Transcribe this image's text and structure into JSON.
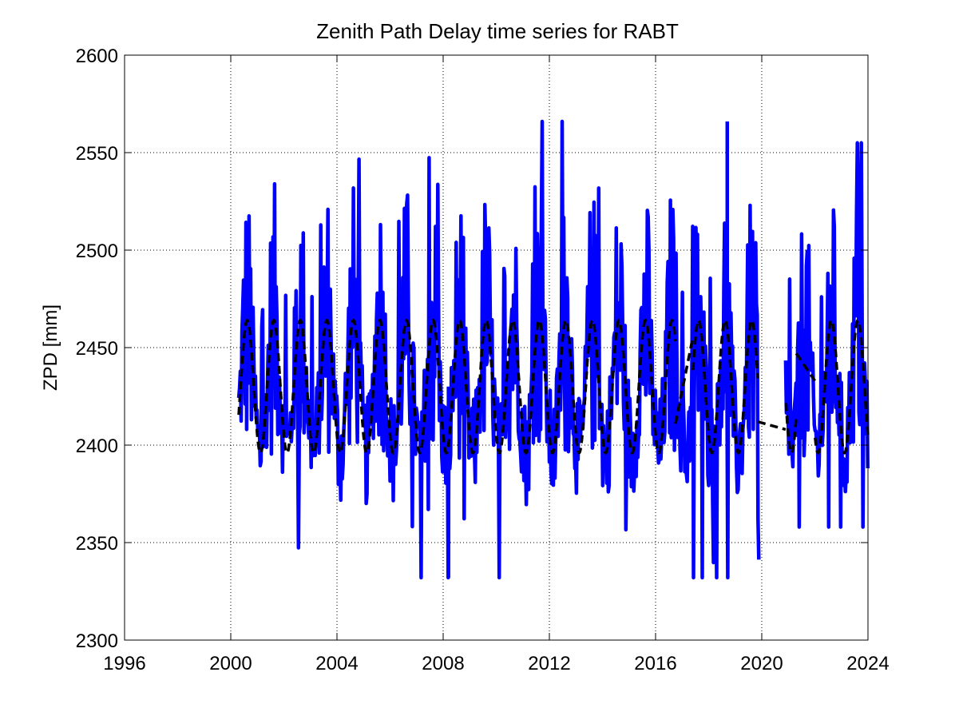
{
  "chart_data": {
    "type": "line",
    "title": "Zenith Path Delay time series for RABT",
    "xlabel": "",
    "ylabel": "ZPD [mm]",
    "xlim": [
      1996,
      2024
    ],
    "ylim": [
      2300,
      2600
    ],
    "x_ticks": [
      "1996",
      "2000",
      "2004",
      "2008",
      "2012",
      "2016",
      "2020",
      "2024"
    ],
    "y_ticks": [
      "2300",
      "2350",
      "2400",
      "2450",
      "2500",
      "2550",
      "2600"
    ],
    "grid": true,
    "colors": {
      "observed": "#0000ff",
      "model": "#000000"
    },
    "series": [
      {
        "style": "solid",
        "color": "#0000ff",
        "segments": [
          {
            "x_range": [
              2000.3,
              2019.9
            ],
            "mean": 2430,
            "seasonal_amplitude": 34,
            "peak_phase_year_fraction": 0.62,
            "noise_range": [
              2332,
              2566
            ]
          },
          {
            "x_range": [
              2020.9,
              2024.0
            ],
            "mean": 2430,
            "seasonal_amplitude": 34,
            "peak_phase_year_fraction": 0.62,
            "noise_range": [
              2358,
              2555
            ]
          }
        ],
        "extremes": {
          "max": {
            "x": 2018.7,
            "y": 2566
          },
          "min": {
            "x": 2008.2,
            "y": 2332
          }
        }
      },
      {
        "style": "dashed",
        "color": "#000000",
        "x_range": [
          2000.3,
          2024.0
        ],
        "mean": 2430,
        "amplitude": 34,
        "period_years": 1,
        "peak_phase_year_fraction": 0.62,
        "bridges": [
          {
            "from": [
              2016.75,
              2411
            ],
            "to": [
              2017.4,
              2455
            ]
          },
          {
            "from": [
              2019.85,
              2412
            ],
            "to": [
              2020.9,
              2408
            ]
          },
          {
            "from": [
              2021.3,
              2447
            ],
            "to": [
              2022.0,
              2433
            ]
          }
        ]
      }
    ]
  }
}
